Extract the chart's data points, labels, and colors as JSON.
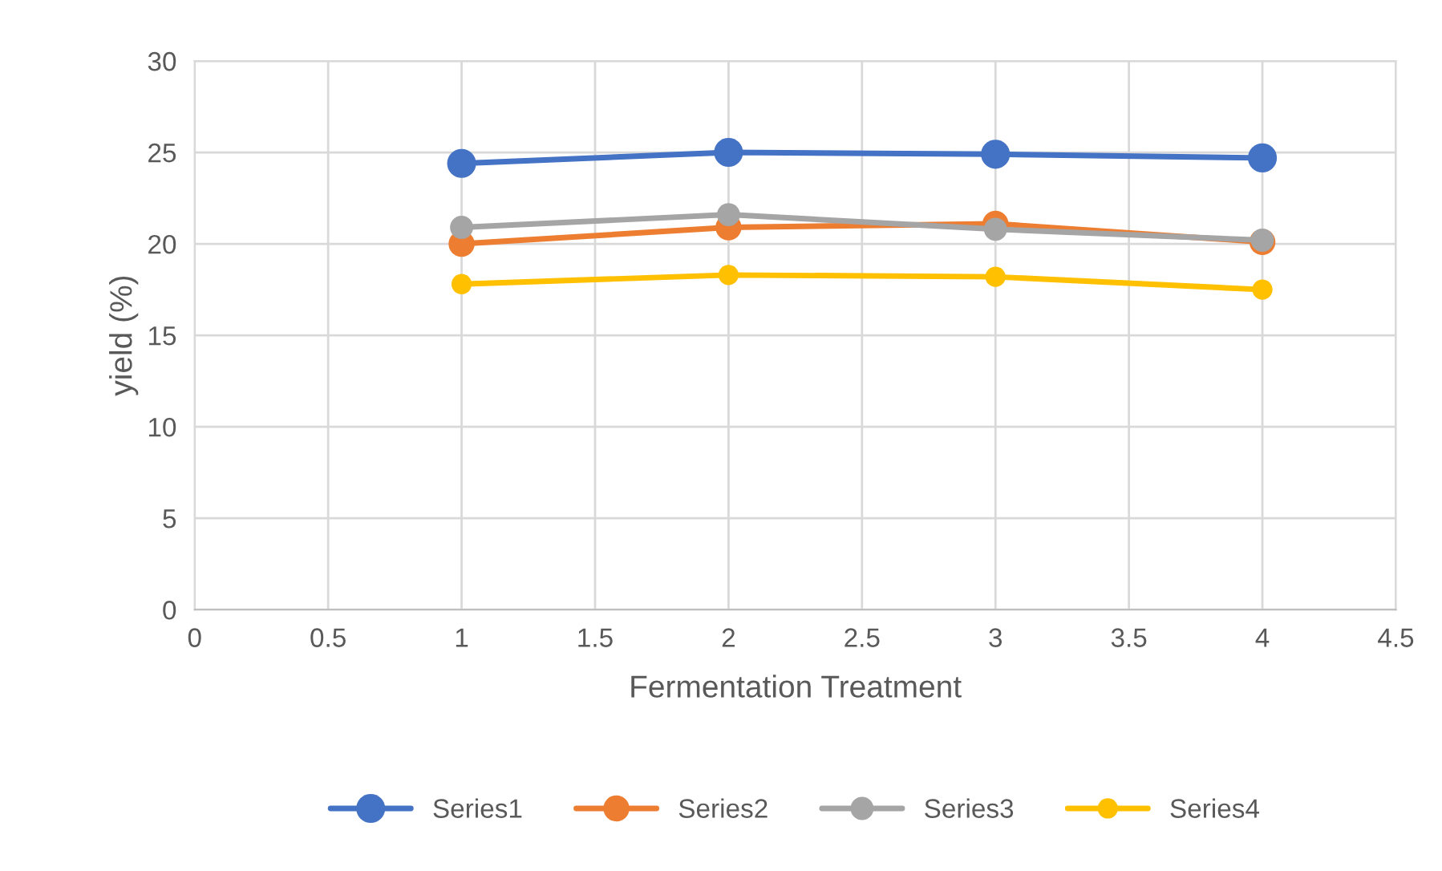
{
  "chart_data": {
    "type": "line",
    "xlabel": "Fermentation Treatment",
    "ylabel": "yield (%)",
    "x": [
      1,
      2,
      3,
      4
    ],
    "series": [
      {
        "name": "Series1",
        "color": "#4472c4",
        "values": [
          24.4,
          25.0,
          24.9,
          24.7
        ]
      },
      {
        "name": "Series2",
        "color": "#ed7d31",
        "values": [
          20.0,
          20.9,
          21.1,
          20.1
        ]
      },
      {
        "name": "Series3",
        "color": "#a5a5a5",
        "values": [
          20.9,
          21.6,
          20.8,
          20.2
        ]
      },
      {
        "name": "Series4",
        "color": "#ffc000",
        "values": [
          17.8,
          18.3,
          18.2,
          17.5
        ]
      }
    ],
    "xlim": [
      0,
      4.5
    ],
    "xticks": [
      0,
      0.5,
      1,
      1.5,
      2,
      2.5,
      3,
      3.5,
      4,
      4.5
    ],
    "ylim": [
      0,
      30
    ],
    "yticks": [
      0,
      5,
      10,
      15,
      20,
      25,
      30
    ],
    "grid": true,
    "legend": "bottom",
    "marker": "circle",
    "line_style": "solid"
  }
}
